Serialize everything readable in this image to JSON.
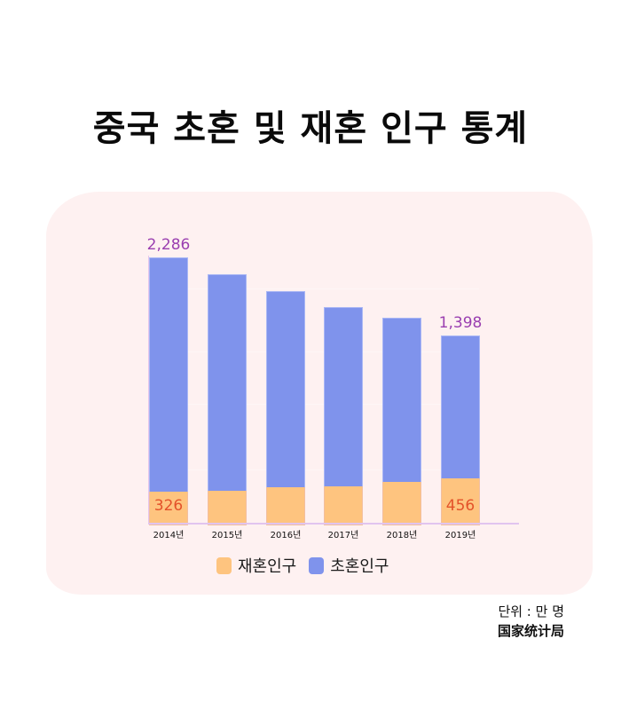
{
  "title": "중국 초혼 및 재혼 인구 통계",
  "colors": {
    "background_blob": "#fef1f1",
    "first_marriage": "#7f93ec",
    "remarriage": "#fec47f",
    "top_label": "#9a3fb0",
    "inner_label": "#e3522a",
    "axis": "#e1c4ef"
  },
  "legend": [
    {
      "label": "재혼인구",
      "color": "#fec47f"
    },
    {
      "label": "초혼인구",
      "color": "#7f93ec"
    }
  ],
  "footer": {
    "unit": "단위 : 만 명",
    "source": "国家统计局"
  },
  "chart_data": {
    "type": "bar",
    "stacked": true,
    "title": "중국 초혼 및 재혼 인구 통계",
    "xlabel": "",
    "ylabel": "",
    "unit": "만 명",
    "categories": [
      "2014년",
      "2015년",
      "2016년",
      "2017년",
      "2018년",
      "2019년"
    ],
    "series": [
      {
        "name": "재혼인구",
        "values": [
          326,
          337,
          372,
          381,
          424,
          456
        ]
      },
      {
        "name": "초혼인구",
        "values": [
          2286,
          2111,
          1912,
          1747,
          1600,
          1398
        ]
      }
    ],
    "data_labels": [
      {
        "category": "2014년",
        "series": "초혼인구",
        "text": "2,286"
      },
      {
        "category": "2014년",
        "series": "재혼인구",
        "text": "326"
      },
      {
        "category": "2019년",
        "series": "초혼인구",
        "text": "1,398"
      },
      {
        "category": "2019년",
        "series": "재혼인구",
        "text": "456"
      }
    ],
    "grid": true,
    "legend_position": "bottom",
    "y_axis_visible": false
  }
}
